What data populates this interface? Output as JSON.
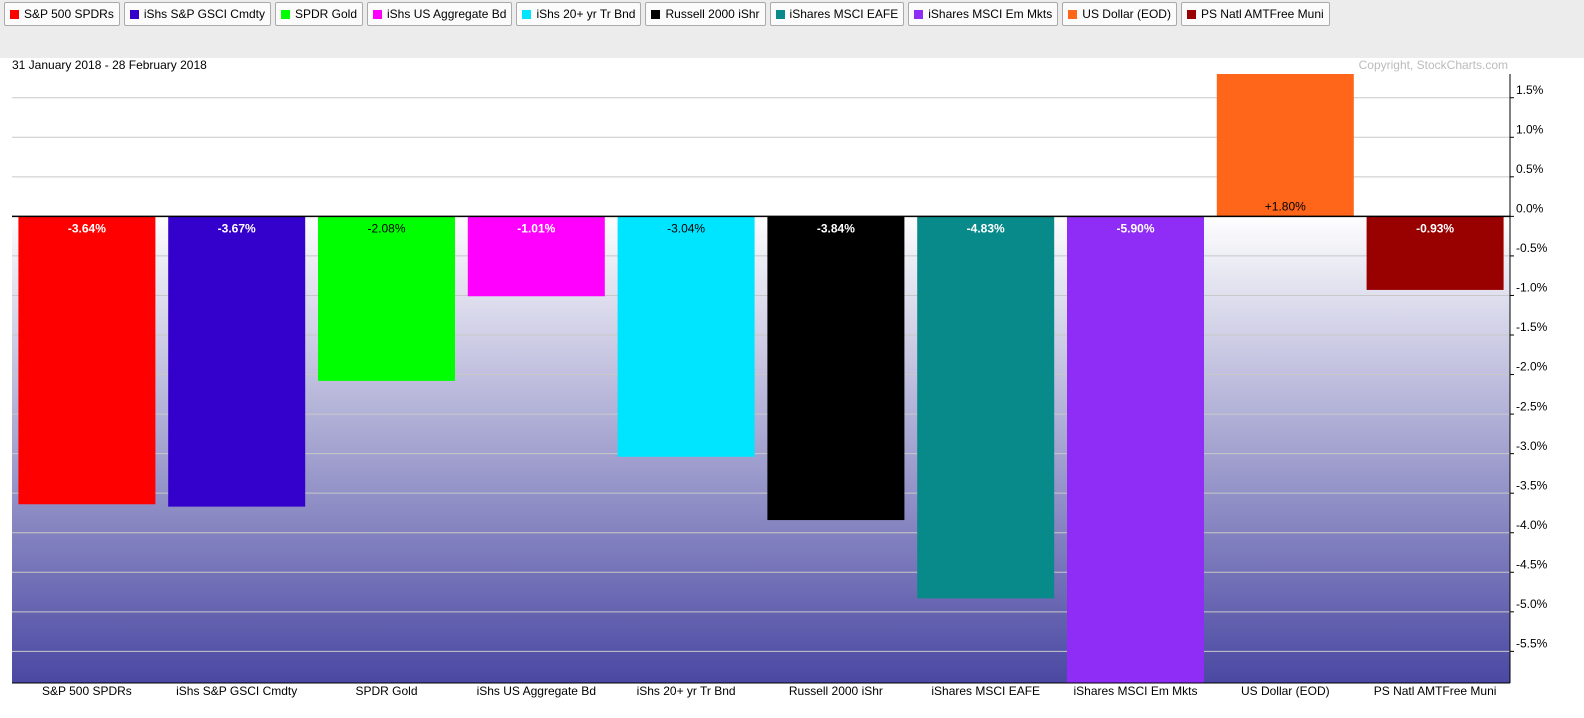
{
  "chart_data": {
    "type": "bar",
    "date_range": "31 January 2018 - 28 February 2018",
    "copyright": "Copyright, StockCharts.com",
    "categories": [
      "S&P 500 SPDRs",
      "iShs S&P GSCI Cmdty",
      "SPDR Gold",
      "iShs US Aggregate Bd",
      "iShs 20+ yr Tr Bnd",
      "Russell 2000 iShr",
      "iShares MSCI EAFE",
      "iShares MSCI Em Mkts",
      "US Dollar (EOD)",
      "PS Natl AMTFree Muni"
    ],
    "values": [
      -3.64,
      -3.67,
      -2.08,
      -1.01,
      -3.04,
      -3.84,
      -4.83,
      -5.9,
      1.8,
      -0.93
    ],
    "value_labels": [
      "-3.64%",
      "-3.67%",
      "-2.08%",
      "-1.01%",
      "-3.04%",
      "-3.84%",
      "-4.83%",
      "-5.90%",
      "+1.80%",
      "-0.93%"
    ],
    "colors": [
      "#ff0000",
      "#3300cc",
      "#00ff00",
      "#ff00ff",
      "#00e5ff",
      "#000000",
      "#088a8a",
      "#8f2cf5",
      "#ff6619",
      "#990000"
    ],
    "ylim": [
      -5.9,
      1.8
    ],
    "yticks": [
      {
        "value": 1.5,
        "label": "1.5%"
      },
      {
        "value": 1.0,
        "label": "1.0%"
      },
      {
        "value": 0.5,
        "label": "0.5%"
      },
      {
        "value": 0.0,
        "label": "0.0%"
      },
      {
        "value": -0.5,
        "label": "-0.5%"
      },
      {
        "value": -1.0,
        "label": "-1.0%"
      },
      {
        "value": -1.5,
        "label": "-1.5%"
      },
      {
        "value": -2.0,
        "label": "-2.0%"
      },
      {
        "value": -2.5,
        "label": "-2.5%"
      },
      {
        "value": -3.0,
        "label": "-3.0%"
      },
      {
        "value": -3.5,
        "label": "-3.5%"
      },
      {
        "value": -4.0,
        "label": "-4.0%"
      },
      {
        "value": -4.5,
        "label": "-4.5%"
      },
      {
        "value": -5.0,
        "label": "-5.0%"
      },
      {
        "value": -5.5,
        "label": "-5.5%"
      }
    ],
    "grid": true
  }
}
